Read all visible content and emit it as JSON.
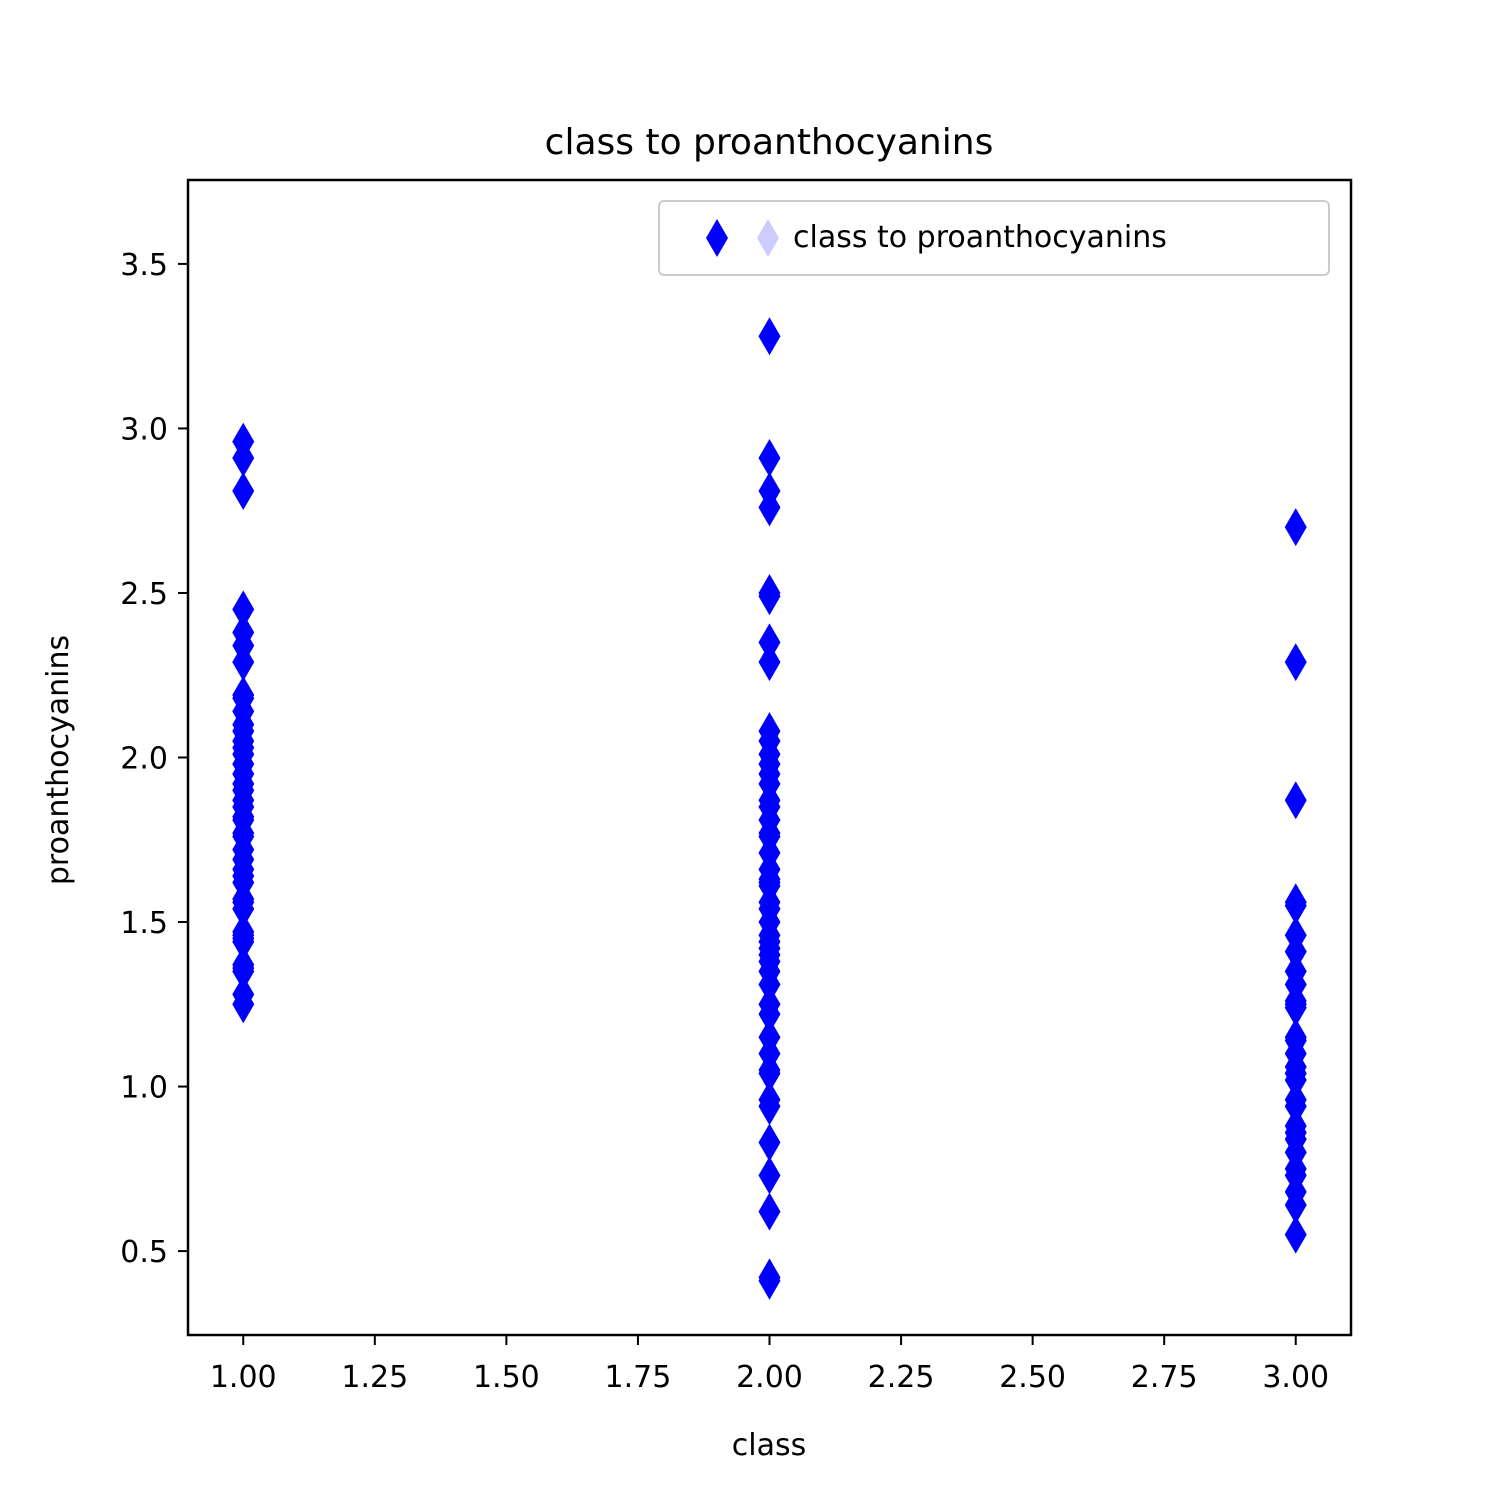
{
  "chart_data": {
    "type": "scatter",
    "title": "class to proanthocyanins",
    "xlabel": "class",
    "ylabel": "proanthocyanins",
    "xlim": [
      0.895,
      3.105
    ],
    "ylim": [
      0.245,
      3.755
    ],
    "xticks": [
      1.0,
      1.25,
      1.5,
      1.75,
      2.0,
      2.25,
      2.5,
      2.75,
      3.0
    ],
    "xtick_labels": [
      "1.00",
      "1.25",
      "1.50",
      "1.75",
      "2.00",
      "2.25",
      "2.50",
      "2.75",
      "3.00"
    ],
    "yticks": [
      0.5,
      1.0,
      1.5,
      2.0,
      2.5,
      3.0,
      3.5
    ],
    "ytick_labels": [
      "0.5",
      "1.0",
      "1.5",
      "2.0",
      "2.5",
      "3.0",
      "3.5"
    ],
    "grid": false,
    "legend_position": "top-right",
    "marker": "thin-diamond",
    "series": [
      {
        "name": "class to proanthocyanins",
        "color": "#0000ff",
        "points": [
          [
            1,
            2.96
          ],
          [
            1,
            2.91
          ],
          [
            1,
            2.81
          ],
          [
            1,
            2.45
          ],
          [
            1,
            2.38
          ],
          [
            1,
            2.34
          ],
          [
            1,
            2.29
          ],
          [
            1,
            2.19
          ],
          [
            1,
            2.18
          ],
          [
            1,
            2.14
          ],
          [
            1,
            2.1
          ],
          [
            1,
            2.08
          ],
          [
            1,
            2.05
          ],
          [
            1,
            2.03
          ],
          [
            1,
            2.01
          ],
          [
            1,
            1.98
          ],
          [
            1,
            1.95
          ],
          [
            1,
            1.92
          ],
          [
            1,
            1.9
          ],
          [
            1,
            1.87
          ],
          [
            1,
            1.85
          ],
          [
            1,
            1.82
          ],
          [
            1,
            1.81
          ],
          [
            1,
            1.77
          ],
          [
            1,
            1.76
          ],
          [
            1,
            1.72
          ],
          [
            1,
            1.69
          ],
          [
            1,
            1.66
          ],
          [
            1,
            1.64
          ],
          [
            1,
            1.62
          ],
          [
            1,
            1.57
          ],
          [
            1,
            1.56
          ],
          [
            1,
            1.54
          ],
          [
            1,
            1.47
          ],
          [
            1,
            1.46
          ],
          [
            1,
            1.45
          ],
          [
            1,
            1.44
          ],
          [
            1,
            1.37
          ],
          [
            1,
            1.36
          ],
          [
            1,
            1.35
          ],
          [
            1,
            1.28
          ],
          [
            1,
            1.25
          ],
          [
            2,
            3.28
          ],
          [
            2,
            2.91
          ],
          [
            2,
            2.81
          ],
          [
            2,
            2.76
          ],
          [
            2,
            2.5
          ],
          [
            2,
            2.49
          ],
          [
            2,
            2.35
          ],
          [
            2,
            2.29
          ],
          [
            2,
            2.08
          ],
          [
            2,
            2.05
          ],
          [
            2,
            2.01
          ],
          [
            2,
            1.98
          ],
          [
            2,
            1.95
          ],
          [
            2,
            1.92
          ],
          [
            2,
            1.87
          ],
          [
            2,
            1.85
          ],
          [
            2,
            1.81
          ],
          [
            2,
            1.77
          ],
          [
            2,
            1.76
          ],
          [
            2,
            1.71
          ],
          [
            2,
            1.66
          ],
          [
            2,
            1.63
          ],
          [
            2,
            1.62
          ],
          [
            2,
            1.61
          ],
          [
            2,
            1.56
          ],
          [
            2,
            1.54
          ],
          [
            2,
            1.5
          ],
          [
            2,
            1.46
          ],
          [
            2,
            1.44
          ],
          [
            2,
            1.42
          ],
          [
            2,
            1.4
          ],
          [
            2,
            1.38
          ],
          [
            2,
            1.35
          ],
          [
            2,
            1.31
          ],
          [
            2,
            1.25
          ],
          [
            2,
            1.22
          ],
          [
            2,
            1.15
          ],
          [
            2,
            1.1
          ],
          [
            2,
            1.05
          ],
          [
            2,
            1.04
          ],
          [
            2,
            0.96
          ],
          [
            2,
            0.94
          ],
          [
            2,
            0.83
          ],
          [
            2,
            0.73
          ],
          [
            2,
            0.62
          ],
          [
            2,
            0.42
          ],
          [
            2,
            0.41
          ],
          [
            3,
            2.7
          ],
          [
            3,
            2.29
          ],
          [
            3,
            1.87
          ],
          [
            3,
            1.56
          ],
          [
            3,
            1.55
          ],
          [
            3,
            1.46
          ],
          [
            3,
            1.41
          ],
          [
            3,
            1.35
          ],
          [
            3,
            1.31
          ],
          [
            3,
            1.26
          ],
          [
            3,
            1.25
          ],
          [
            3,
            1.24
          ],
          [
            3,
            1.15
          ],
          [
            3,
            1.14
          ],
          [
            3,
            1.1
          ],
          [
            3,
            1.06
          ],
          [
            3,
            1.04
          ],
          [
            3,
            1.02
          ],
          [
            3,
            0.96
          ],
          [
            3,
            0.94
          ],
          [
            3,
            0.88
          ],
          [
            3,
            0.86
          ],
          [
            3,
            0.84
          ],
          [
            3,
            0.8
          ],
          [
            3,
            0.75
          ],
          [
            3,
            0.73
          ],
          [
            3,
            0.68
          ],
          [
            3,
            0.64
          ],
          [
            3,
            0.55
          ]
        ]
      }
    ]
  }
}
